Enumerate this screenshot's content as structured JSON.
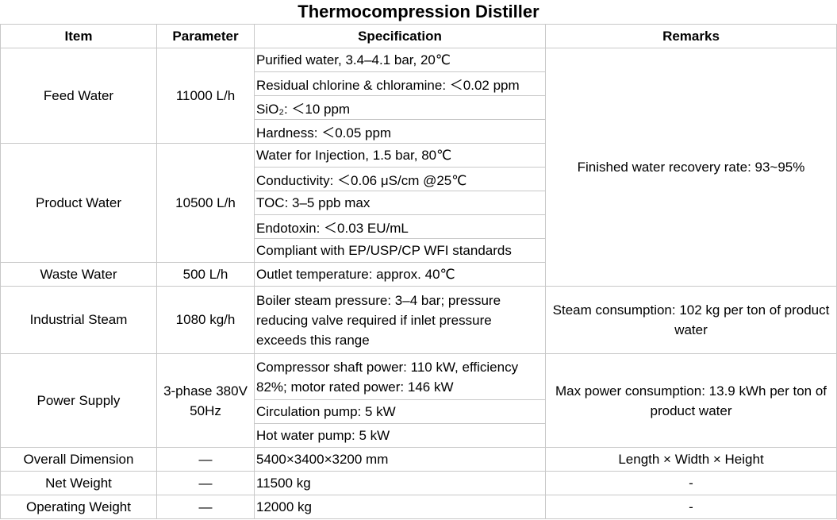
{
  "title": "Thermocompression Distiller",
  "headers": {
    "item": "Item",
    "parameter": "Parameter",
    "specification": "Specification",
    "remarks": "Remarks"
  },
  "rows": {
    "feed": {
      "item": "Feed Water",
      "parameter": "11000 L/h",
      "specs": [
        "Purified water, 3.4–4.1 bar, 20℃",
        "Residual chlorine & chloramine: ＜0.02 ppm",
        "SiO₂: ＜10 ppm",
        "Hardness: ＜0.05 ppm"
      ]
    },
    "product": {
      "item": "Product Water",
      "parameter": "10500 L/h",
      "specs": [
        "Water for Injection, 1.5 bar, 80℃",
        "Conductivity: ＜0.06 μS/cm @25℃",
        "TOC: 3–5 ppb max",
        "Endotoxin: ＜0.03 EU/mL",
        "Compliant with EP/USP/CP WFI standards"
      ]
    },
    "water_remarks": "Finished water recovery rate: 93~95%",
    "waste": {
      "item": "Waste Water",
      "parameter": "500 L/h",
      "spec": "Outlet temperature: approx. 40℃"
    },
    "steam": {
      "item": "Industrial Steam",
      "parameter": "1080 kg/h",
      "spec": "Boiler steam pressure: 3–4 bar; pressure reducing valve required if inlet pressure exceeds this range",
      "remarks": "Steam consumption: 102 kg per ton of product water"
    },
    "power": {
      "item": "Power Supply",
      "parameter": "3-phase 380V 50Hz",
      "specs": [
        "Compressor shaft power: 110 kW, efficiency 82%; motor rated power: 146 kW",
        "Circulation pump: 5 kW",
        "Hot water pump: 5 kW"
      ],
      "remarks": "Max power consumption: 13.9 kWh per ton of product water"
    },
    "dimension": {
      "item": "Overall Dimension",
      "parameter": "—",
      "spec": "5400×3400×3200 mm",
      "remarks": "Length × Width × Height"
    },
    "net_weight": {
      "item": "Net Weight",
      "parameter": "—",
      "spec": "11500 kg",
      "remarks": "-"
    },
    "operating_weight": {
      "item": "Operating Weight",
      "parameter": "—",
      "spec": "12000 kg",
      "remarks": "-"
    }
  }
}
